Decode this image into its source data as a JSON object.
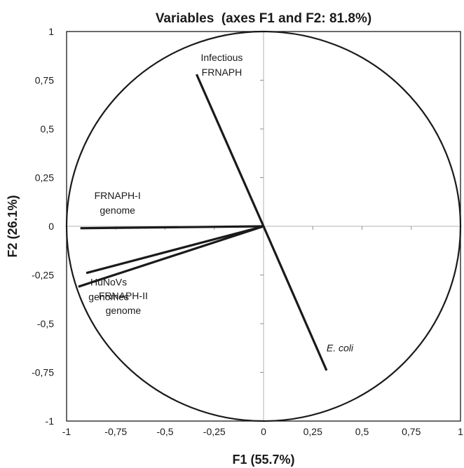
{
  "chart_data": {
    "type": "scatter",
    "title": "Variables  (axes F1 and F2: 81.8%)",
    "xlabel": "F1 (55.7%)",
    "ylabel": "F2 (26.1%)",
    "xlim": [
      -1,
      1
    ],
    "ylim": [
      -1,
      1
    ],
    "x_ticks": [
      "-1",
      "-0,75",
      "-0,5",
      "-0,25",
      "0",
      "0,25",
      "0,5",
      "0,75",
      "1"
    ],
    "y_ticks": [
      "1",
      "0,75",
      "0,5",
      "0,25",
      "0",
      "-0,25",
      "-0,5",
      "-0,75",
      "-1"
    ],
    "correlation_circle": true,
    "grid": false,
    "variables": [
      {
        "lines": [
          "Infectious",
          "FRNAPH"
        ],
        "x": -0.34,
        "y": 0.78,
        "italic": false
      },
      {
        "lines": [
          "FRNAPH-I",
          "genome"
        ],
        "x": -0.93,
        "y": -0.01,
        "italic": false
      },
      {
        "lines": [
          "HuNoVs",
          "genomes"
        ],
        "x": -0.9,
        "y": -0.24,
        "italic": false
      },
      {
        "lines": [
          "FRNAPH-II",
          "genome"
        ],
        "x": -0.94,
        "y": -0.31,
        "italic": false
      },
      {
        "lines": [
          "E. coli"
        ],
        "x": 0.32,
        "y": -0.74,
        "italic": true
      }
    ]
  }
}
